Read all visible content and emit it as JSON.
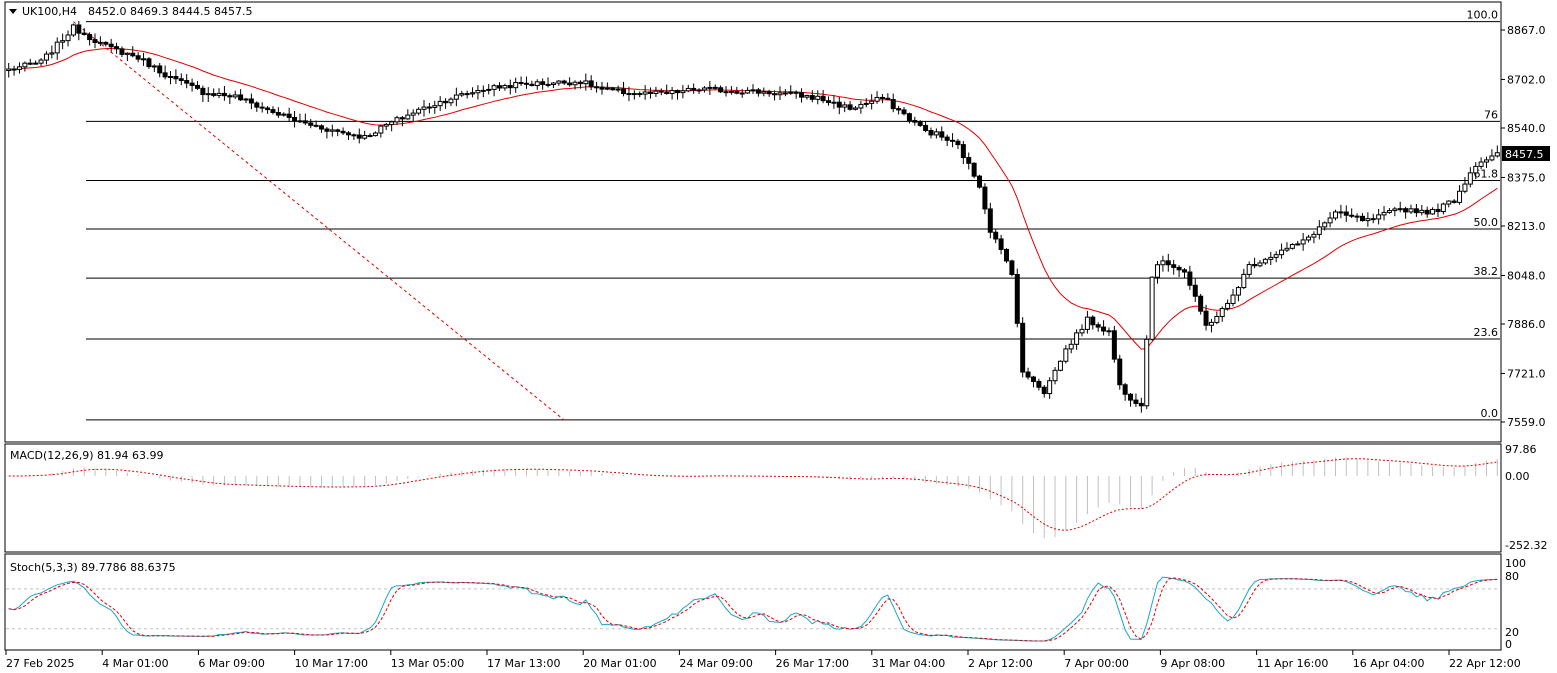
{
  "header": {
    "symbol": "UK100,H4",
    "ohlc": "8452.0 8469.3 8444.5 8457.5"
  },
  "chart_data": [
    {
      "type": "candlestick",
      "title": "UK100,H4",
      "y_ticks": [
        "8867.0",
        "8702.0",
        "8540.0",
        "8375.0",
        "8213.0",
        "8048.0",
        "7886.0",
        "7721.0",
        "7559.0"
      ],
      "ylim": [
        7540,
        8915
      ],
      "current_price": "8457.5",
      "x_ticks": [
        "27 Feb 2025",
        "4 Mar 01:00",
        "6 Mar 09:00",
        "10 Mar 17:00",
        "13 Mar 05:00",
        "17 Mar 13:00",
        "20 Mar 01:00",
        "24 Mar 09:00",
        "26 Mar 17:00",
        "31 Mar 04:00",
        "2 Apr 12:00",
        "7 Apr 00:00",
        "9 Apr 08:00",
        "11 Apr 16:00",
        "16 Apr 04:00",
        "22 Apr 12:00"
      ],
      "fibonacci": {
        "levels": [
          {
            "label": "100.0",
            "price": 8895
          },
          {
            "label": "76",
            "price": 8562
          },
          {
            "label": "61.8",
            "price": 8365
          },
          {
            "label": "50.0",
            "price": 8203
          },
          {
            "label": "38.2",
            "price": 8039
          },
          {
            "label": "23.6",
            "price": 7836
          },
          {
            "label": "0.0",
            "price": 7566
          }
        ]
      },
      "close_anchors": [
        [
          0,
          8735
        ],
        [
          6,
          8760
        ],
        [
          12,
          8875
        ],
        [
          18,
          8812
        ],
        [
          24,
          8775
        ],
        [
          30,
          8708
        ],
        [
          36,
          8660
        ],
        [
          42,
          8645
        ],
        [
          48,
          8600
        ],
        [
          54,
          8560
        ],
        [
          60,
          8532
        ],
        [
          66,
          8510
        ],
        [
          70,
          8550
        ],
        [
          76,
          8600
        ],
        [
          82,
          8640
        ],
        [
          88,
          8670
        ],
        [
          94,
          8685
        ],
        [
          100,
          8690
        ],
        [
          106,
          8695
        ],
        [
          110,
          8668
        ],
        [
          116,
          8655
        ],
        [
          122,
          8655
        ],
        [
          128,
          8670
        ],
        [
          134,
          8665
        ],
        [
          140,
          8660
        ],
        [
          146,
          8650
        ],
        [
          150,
          8640
        ],
        [
          156,
          8605
        ],
        [
          162,
          8640
        ],
        [
          166,
          8585
        ],
        [
          170,
          8530
        ],
        [
          172,
          8520
        ],
        [
          176,
          8480
        ],
        [
          180,
          8350
        ],
        [
          182,
          8200
        ],
        [
          186,
          8060
        ],
        [
          188,
          7720
        ],
        [
          190,
          7700
        ],
        [
          192,
          7660
        ],
        [
          196,
          7800
        ],
        [
          200,
          7900
        ],
        [
          204,
          7860
        ],
        [
          206,
          7680
        ],
        [
          208,
          7640
        ],
        [
          210,
          7620
        ],
        [
          212,
          8050
        ],
        [
          214,
          8100
        ],
        [
          218,
          8060
        ],
        [
          222,
          7880
        ],
        [
          226,
          7950
        ],
        [
          230,
          8080
        ],
        [
          236,
          8130
        ],
        [
          240,
          8160
        ],
        [
          246,
          8255
        ],
        [
          252,
          8230
        ],
        [
          258,
          8270
        ],
        [
          264,
          8260
        ],
        [
          268,
          8300
        ],
        [
          272,
          8420
        ],
        [
          276,
          8457.5
        ]
      ]
    },
    {
      "type": "histogram+line",
      "label": "MACD(12,26,9) 81.94 63.99",
      "y_ticks": [
        "97.86",
        "0.00",
        "-252.32"
      ],
      "ylim": [
        -290,
        130
      ]
    },
    {
      "type": "line",
      "label": "Stoch(5,3,3) 89.7786 88.6375",
      "y_ticks": [
        "100",
        "80",
        "20",
        "0"
      ],
      "ylim": [
        0,
        100
      ],
      "levels": [
        80,
        20
      ]
    }
  ],
  "colors": {
    "ma": "#e00000",
    "signal": "#e00000",
    "stoch_main": "#1aa7c7",
    "fib_trend": "#e00000",
    "grid": "#c0c0c0",
    "histogram": "#c0c0c0"
  }
}
